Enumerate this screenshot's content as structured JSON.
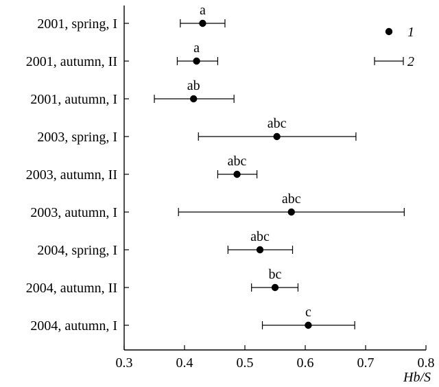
{
  "chart_data": {
    "type": "scatter",
    "title": "",
    "xlabel": "Hb/S",
    "ylabel": "",
    "xlim": [
      0.3,
      0.8
    ],
    "xticks": [
      "0.3",
      "0.4",
      "0.5",
      "0.6",
      "0.7",
      "0.8"
    ],
    "grid": false,
    "legend_position": "top-right",
    "legend": [
      {
        "label": "1",
        "marker": "filled-circle",
        "meaning": "mean"
      },
      {
        "label": "2",
        "marker": "error-bar",
        "meaning": "error"
      }
    ],
    "categories": [
      "2001, spring, I",
      "2001, autumn, II",
      "2001, autumn, I",
      "2003, spring, I",
      "2003, autumn, II",
      "2003, autumn, I",
      "2004, spring, I",
      "2004, autumn, II",
      "2004, autumn, I"
    ],
    "series": [
      {
        "points": [
          {
            "category": "2001, spring, I",
            "x": 0.43,
            "low": 0.393,
            "high": 0.467,
            "label": "a"
          },
          {
            "category": "2001, autumn, II",
            "x": 0.42,
            "low": 0.388,
            "high": 0.455,
            "label": "a"
          },
          {
            "category": "2001, autumn, I",
            "x": 0.415,
            "low": 0.35,
            "high": 0.482,
            "label": "ab"
          },
          {
            "category": "2003, spring, I",
            "x": 0.553,
            "low": 0.423,
            "high": 0.684,
            "label": "abc"
          },
          {
            "category": "2003, autumn, II",
            "x": 0.487,
            "low": 0.455,
            "high": 0.52,
            "label": "abc"
          },
          {
            "category": "2003, autumn, I",
            "x": 0.577,
            "low": 0.39,
            "high": 0.764,
            "label": "abc"
          },
          {
            "category": "2004, spring, I",
            "x": 0.525,
            "low": 0.472,
            "high": 0.579,
            "label": "abc"
          },
          {
            "category": "2004, autumn, II",
            "x": 0.55,
            "low": 0.511,
            "high": 0.588,
            "label": "bc"
          },
          {
            "category": "2004, autumn, I",
            "x": 0.605,
            "low": 0.529,
            "high": 0.682,
            "label": "c"
          }
        ]
      }
    ],
    "colors": {
      "ink": "#000000",
      "background": "#ffffff"
    }
  }
}
